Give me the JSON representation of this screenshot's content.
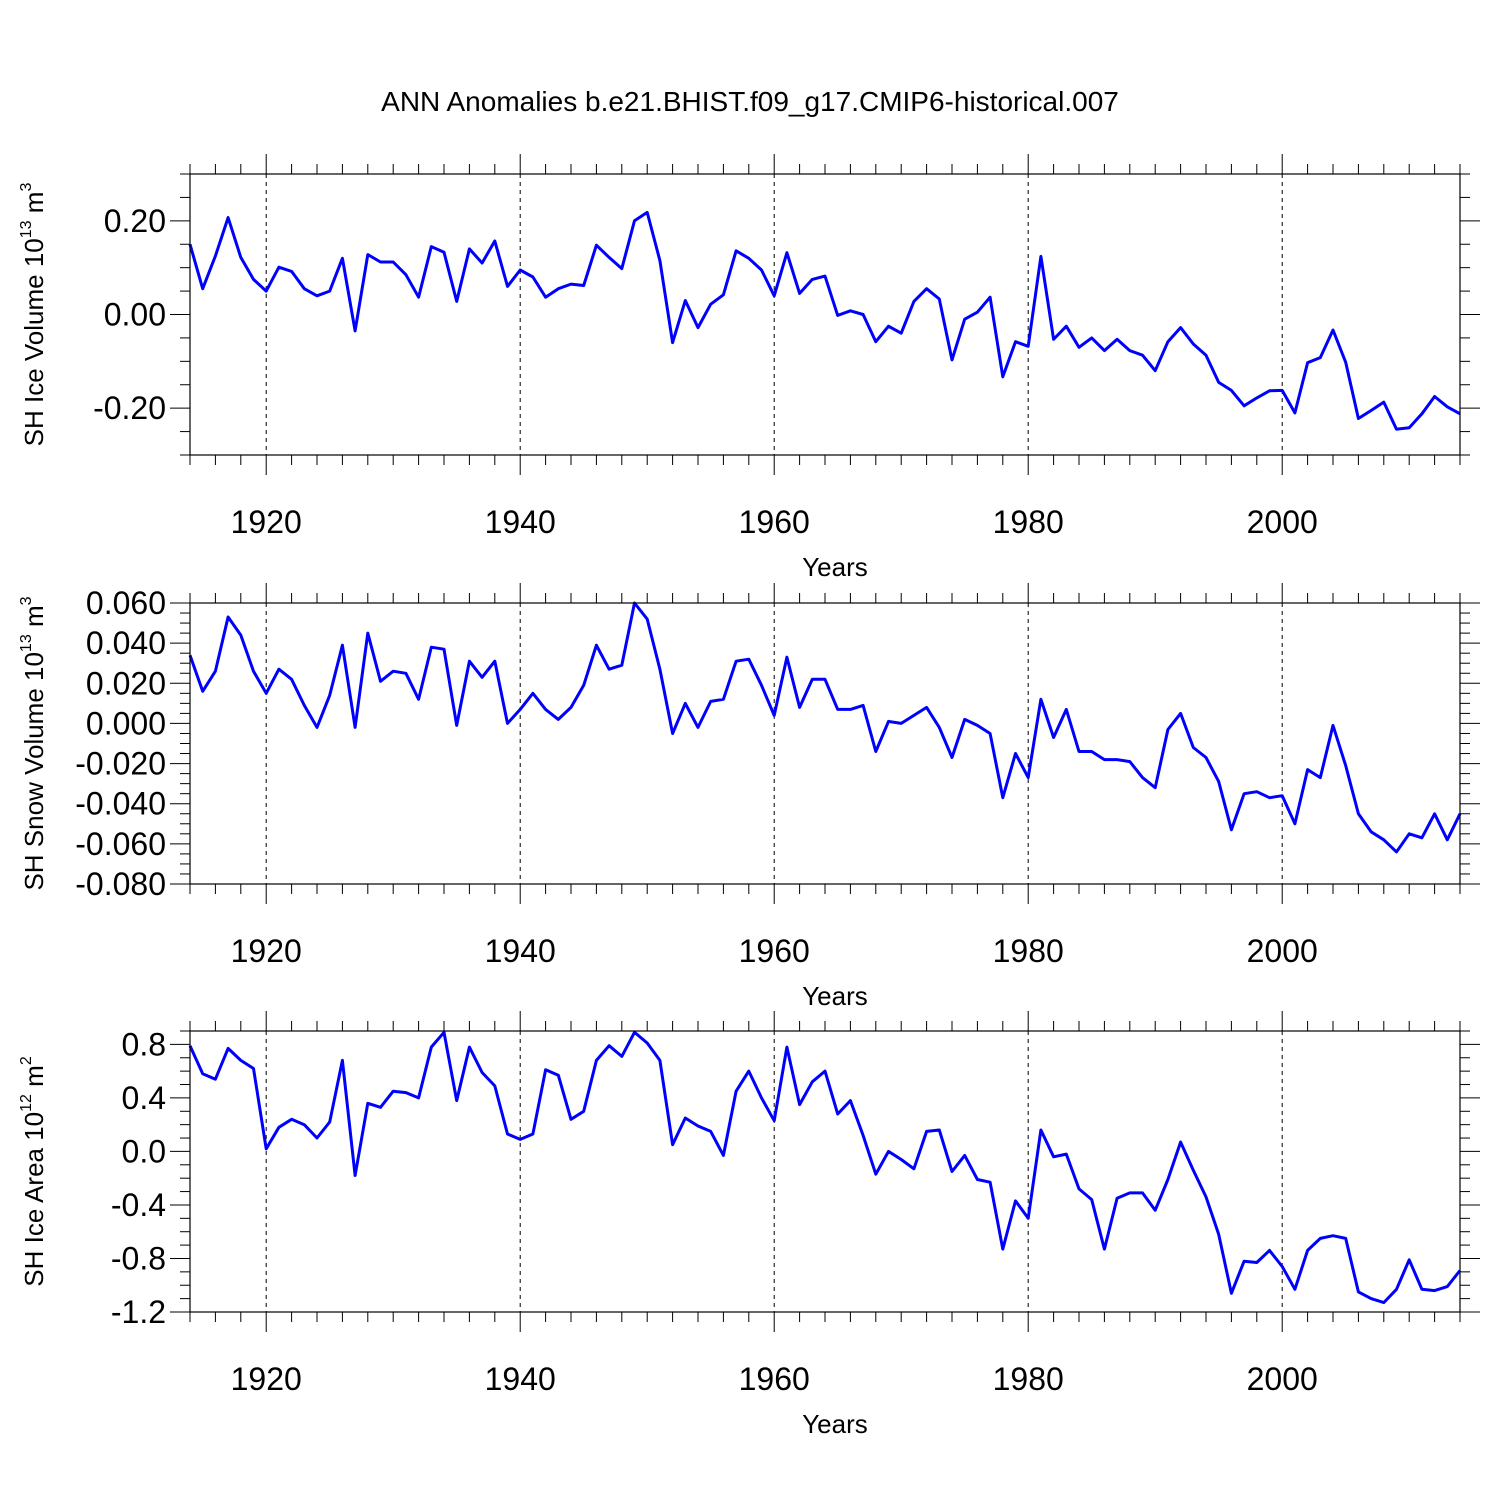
{
  "figure_title": "ANN Anomalies b.e21.BHIST.f09_g17.CMIP6-historical.007",
  "line_color": "#0000ff",
  "chart_data": [
    {
      "type": "line",
      "title": "ANN Anomalies b.e21.BHIST.f09_g17.CMIP6-historical.007",
      "xlabel": "Years",
      "ylabel_text": "SH Ice Volume 10",
      "ylabel_exp": "13",
      "ylabel_unit": " m",
      "ylabel_unit_exp": "3",
      "xlim": [
        1914,
        2014
      ],
      "ylim": [
        -0.3,
        0.3
      ],
      "yticks": [
        -0.2,
        0.0,
        0.2
      ],
      "ytick_labels": [
        "-0.20",
        "0.00",
        "0.20"
      ],
      "ytick_minor": 0.05,
      "xticks": [
        1920,
        1940,
        1960,
        1980,
        2000
      ],
      "xtick_labels": [
        "1920",
        "1940",
        "1960",
        "1980",
        "2000"
      ],
      "grid": "vertical dashed at major x ticks",
      "x_start": 1914,
      "series": [
        {
          "values": [
            0.15,
            0.055,
            0.125,
            0.207,
            0.122,
            0.075,
            0.05,
            0.101,
            0.092,
            0.055,
            0.04,
            0.05,
            0.12,
            -0.035,
            0.128,
            0.112,
            0.112,
            0.085,
            0.037,
            0.145,
            0.133,
            0.028,
            0.14,
            0.11,
            0.157,
            0.06,
            0.095,
            0.08,
            0.037,
            0.055,
            0.065,
            0.062,
            0.148,
            0.122,
            0.098,
            0.2,
            0.218,
            0.115,
            -0.06,
            0.03,
            -0.028,
            0.022,
            0.042,
            0.136,
            0.12,
            0.095,
            0.04,
            0.132,
            0.045,
            0.075,
            0.082,
            -0.002,
            0.008,
            0.0,
            -0.058,
            -0.025,
            -0.04,
            0.028,
            0.055,
            0.033,
            -0.097,
            -0.01,
            0.005,
            0.037,
            -0.133,
            -0.058,
            -0.068,
            0.124,
            -0.053,
            -0.025,
            -0.07,
            -0.05,
            -0.077,
            -0.053,
            -0.077,
            -0.087,
            -0.12,
            -0.058,
            -0.028,
            -0.063,
            -0.087,
            -0.145,
            -0.162,
            -0.195,
            -0.178,
            -0.163,
            -0.162,
            -0.21,
            -0.103,
            -0.092,
            -0.033,
            -0.102,
            -0.222,
            -0.205,
            -0.187,
            -0.245,
            -0.242,
            -0.212,
            -0.175,
            -0.197,
            -0.212
          ]
        }
      ]
    },
    {
      "type": "line",
      "xlabel": "Years",
      "ylabel_text": "SH Snow Volume 10",
      "ylabel_exp": "13",
      "ylabel_unit": " m",
      "ylabel_unit_exp": "3",
      "xlim": [
        1914,
        2014
      ],
      "ylim": [
        -0.08,
        0.06
      ],
      "yticks": [
        -0.08,
        -0.06,
        -0.04,
        -0.02,
        0.0,
        0.02,
        0.04,
        0.06
      ],
      "ytick_labels": [
        "-0.080",
        "-0.060",
        "-0.040",
        "-0.020",
        "0.000",
        "0.020",
        "0.040",
        "0.060"
      ],
      "ytick_minor": 0.005,
      "xticks": [
        1920,
        1940,
        1960,
        1980,
        2000
      ],
      "xtick_labels": [
        "1920",
        "1940",
        "1960",
        "1980",
        "2000"
      ],
      "grid": "vertical dashed at major x ticks",
      "x_start": 1914,
      "series": [
        {
          "values": [
            0.034,
            0.016,
            0.026,
            0.053,
            0.044,
            0.026,
            0.015,
            0.027,
            0.022,
            0.009,
            -0.002,
            0.014,
            0.039,
            -0.002,
            0.045,
            0.021,
            0.026,
            0.025,
            0.012,
            0.038,
            0.037,
            -0.001,
            0.031,
            0.023,
            0.031,
            0.0,
            0.007,
            0.015,
            0.007,
            0.002,
            0.008,
            0.019,
            0.039,
            0.027,
            0.029,
            0.06,
            0.052,
            0.027,
            -0.005,
            0.01,
            -0.002,
            0.011,
            0.012,
            0.031,
            0.032,
            0.019,
            0.004,
            0.033,
            0.008,
            0.022,
            0.022,
            0.007,
            0.007,
            0.009,
            -0.014,
            0.001,
            0.0,
            0.004,
            0.008,
            -0.002,
            -0.017,
            0.002,
            -0.001,
            -0.005,
            -0.037,
            -0.015,
            -0.027,
            0.012,
            -0.007,
            0.007,
            -0.014,
            -0.014,
            -0.018,
            -0.018,
            -0.019,
            -0.027,
            -0.032,
            -0.003,
            0.005,
            -0.012,
            -0.017,
            -0.029,
            -0.053,
            -0.035,
            -0.034,
            -0.037,
            -0.036,
            -0.05,
            -0.023,
            -0.027,
            -0.001,
            -0.021,
            -0.045,
            -0.054,
            -0.058,
            -0.064,
            -0.055,
            -0.057,
            -0.045,
            -0.058,
            -0.045
          ]
        }
      ]
    },
    {
      "type": "line",
      "xlabel": "Years",
      "ylabel_text": "SH Ice Area 10",
      "ylabel_exp": "12",
      "ylabel_unit": " m",
      "ylabel_unit_exp": "2",
      "xlim": [
        1914,
        2014
      ],
      "ylim": [
        -1.2,
        0.9
      ],
      "yticks": [
        -1.2,
        -0.8,
        -0.4,
        0.0,
        0.4,
        0.8
      ],
      "ytick_labels": [
        "-1.2",
        "-0.8",
        "-0.4",
        "0.0",
        "0.4",
        "0.8"
      ],
      "ytick_minor": 0.1,
      "xticks": [
        1920,
        1940,
        1960,
        1980,
        2000
      ],
      "xtick_labels": [
        "1920",
        "1940",
        "1960",
        "1980",
        "2000"
      ],
      "grid": "vertical dashed at major x ticks",
      "x_start": 1914,
      "series": [
        {
          "values": [
            0.79,
            0.58,
            0.54,
            0.77,
            0.68,
            0.62,
            0.02,
            0.18,
            0.24,
            0.2,
            0.1,
            0.22,
            0.68,
            -0.18,
            0.36,
            0.33,
            0.45,
            0.44,
            0.4,
            0.78,
            0.89,
            0.38,
            0.78,
            0.59,
            0.49,
            0.13,
            0.09,
            0.13,
            0.61,
            0.57,
            0.24,
            0.3,
            0.68,
            0.79,
            0.71,
            0.89,
            0.81,
            0.68,
            0.05,
            0.25,
            0.19,
            0.15,
            -0.03,
            0.45,
            0.6,
            0.4,
            0.23,
            0.78,
            0.35,
            0.52,
            0.6,
            0.28,
            0.38,
            0.12,
            -0.17,
            0.0,
            -0.06,
            -0.13,
            0.15,
            0.16,
            -0.15,
            -0.03,
            -0.21,
            -0.23,
            -0.73,
            -0.37,
            -0.5,
            0.16,
            -0.04,
            -0.02,
            -0.28,
            -0.36,
            -0.73,
            -0.35,
            -0.31,
            -0.31,
            -0.44,
            -0.21,
            0.07,
            -0.14,
            -0.34,
            -0.62,
            -1.06,
            -0.82,
            -0.83,
            -0.74,
            -0.86,
            -1.03,
            -0.74,
            -0.65,
            -0.63,
            -0.65,
            -1.05,
            -1.1,
            -1.13,
            -1.03,
            -0.81,
            -1.03,
            -1.04,
            -1.01,
            -0.89
          ]
        }
      ]
    }
  ]
}
